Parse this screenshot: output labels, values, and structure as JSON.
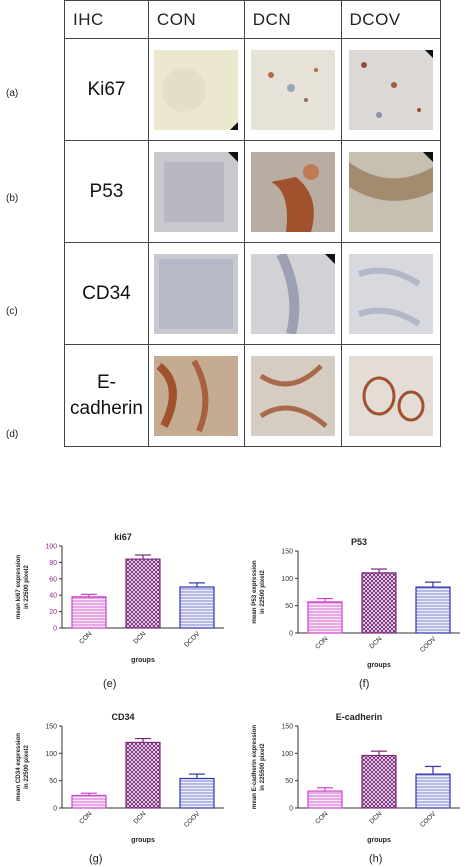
{
  "table": {
    "header": [
      "IHC",
      "CON",
      "DCN",
      "DCOV"
    ],
    "rows": [
      {
        "label": "(a)",
        "marker": [
          "Ki67"
        ]
      },
      {
        "label": "(b)",
        "marker": [
          "P53"
        ]
      },
      {
        "label": "(c)",
        "marker": [
          "CD34"
        ]
      },
      {
        "label": "(d)",
        "marker": [
          "E-",
          "cadherin"
        ]
      }
    ]
  },
  "charts": [
    {
      "panel": "(e)",
      "title": "ki67",
      "ylabel": [
        "mean ki67 expression",
        "in 22500 pixel2"
      ],
      "xlabel": "groups",
      "ylim": [
        0,
        100
      ],
      "yticks": [
        0,
        20,
        40,
        60,
        80,
        100
      ],
      "categories": [
        "CON",
        "DCN",
        "DCOV"
      ],
      "values": [
        38,
        84,
        50
      ],
      "errors": [
        3,
        5,
        5
      ],
      "colors": [
        "#cc44cc",
        "#7a2a7a",
        "#3333aa"
      ]
    },
    {
      "panel": "(f)",
      "title": "P53",
      "ylabel": [
        "mean P53 expression",
        "in 22500 pixel2"
      ],
      "xlabel": "groups",
      "ylim": [
        0,
        150
      ],
      "yticks": [
        0,
        50,
        100,
        150
      ],
      "categories": [
        "CON",
        "DCN",
        "COOV"
      ],
      "values": [
        57,
        110,
        84
      ],
      "errors": [
        6,
        7,
        9
      ],
      "colors": [
        "#cc44cc",
        "#7a2a7a",
        "#3333aa"
      ]
    },
    {
      "panel": "(g)",
      "title": "CD34",
      "ylabel": [
        "mean CD34 expression",
        "in 22500 pixel2"
      ],
      "xlabel": "groups",
      "ylim": [
        0,
        150
      ],
      "yticks": [
        0,
        50,
        100,
        150
      ],
      "categories": [
        "CON",
        "DCN",
        "COOV"
      ],
      "values": [
        23,
        120,
        54
      ],
      "errors": [
        4,
        7,
        8
      ],
      "colors": [
        "#cc44cc",
        "#7a2a7a",
        "#3333aa"
      ]
    },
    {
      "panel": "(h)",
      "title": "E-cadherin",
      "ylabel": [
        "mean E-cadherin expression",
        "in 225500 pixel2"
      ],
      "xlabel": "groups",
      "ylim": [
        0,
        150
      ],
      "yticks": [
        0,
        50,
        100,
        150
      ],
      "categories": [
        "CON",
        "DCN",
        "COOV"
      ],
      "values": [
        31,
        96,
        62
      ],
      "errors": [
        6,
        8,
        14
      ],
      "colors": [
        "#cc44cc",
        "#7a2a7a",
        "#3333aa"
      ]
    }
  ],
  "chart_data": [
    {
      "type": "bar",
      "title": "ki67",
      "xlabel": "groups",
      "ylabel": "mean ki67 expression in 22500 pixel2",
      "categories": [
        "CON",
        "DCN",
        "DCOV"
      ],
      "values": [
        38,
        84,
        50
      ],
      "ylim": [
        0,
        100
      ]
    },
    {
      "type": "bar",
      "title": "P53",
      "xlabel": "groups",
      "ylabel": "mean P53 expression in 22500 pixel2",
      "categories": [
        "CON",
        "DCN",
        "COOV"
      ],
      "values": [
        57,
        110,
        84
      ],
      "ylim": [
        0,
        150
      ]
    },
    {
      "type": "bar",
      "title": "CD34",
      "xlabel": "groups",
      "ylabel": "mean CD34 expression in 22500 pixel2",
      "categories": [
        "CON",
        "DCN",
        "COOV"
      ],
      "values": [
        23,
        120,
        54
      ],
      "ylim": [
        0,
        150
      ]
    },
    {
      "type": "bar",
      "title": "E-cadherin",
      "xlabel": "groups",
      "ylabel": "mean E-cadherin expression in 225500 pixel2",
      "categories": [
        "CON",
        "DCN",
        "COOV"
      ],
      "values": [
        31,
        96,
        62
      ],
      "ylim": [
        0,
        150
      ]
    }
  ],
  "stain_colors": {
    "background": "#e9e4d2",
    "tissue_light": "#cfc7b6",
    "tissue_brown": "#a0522d",
    "tissue_blue": "#a7b0c3"
  }
}
